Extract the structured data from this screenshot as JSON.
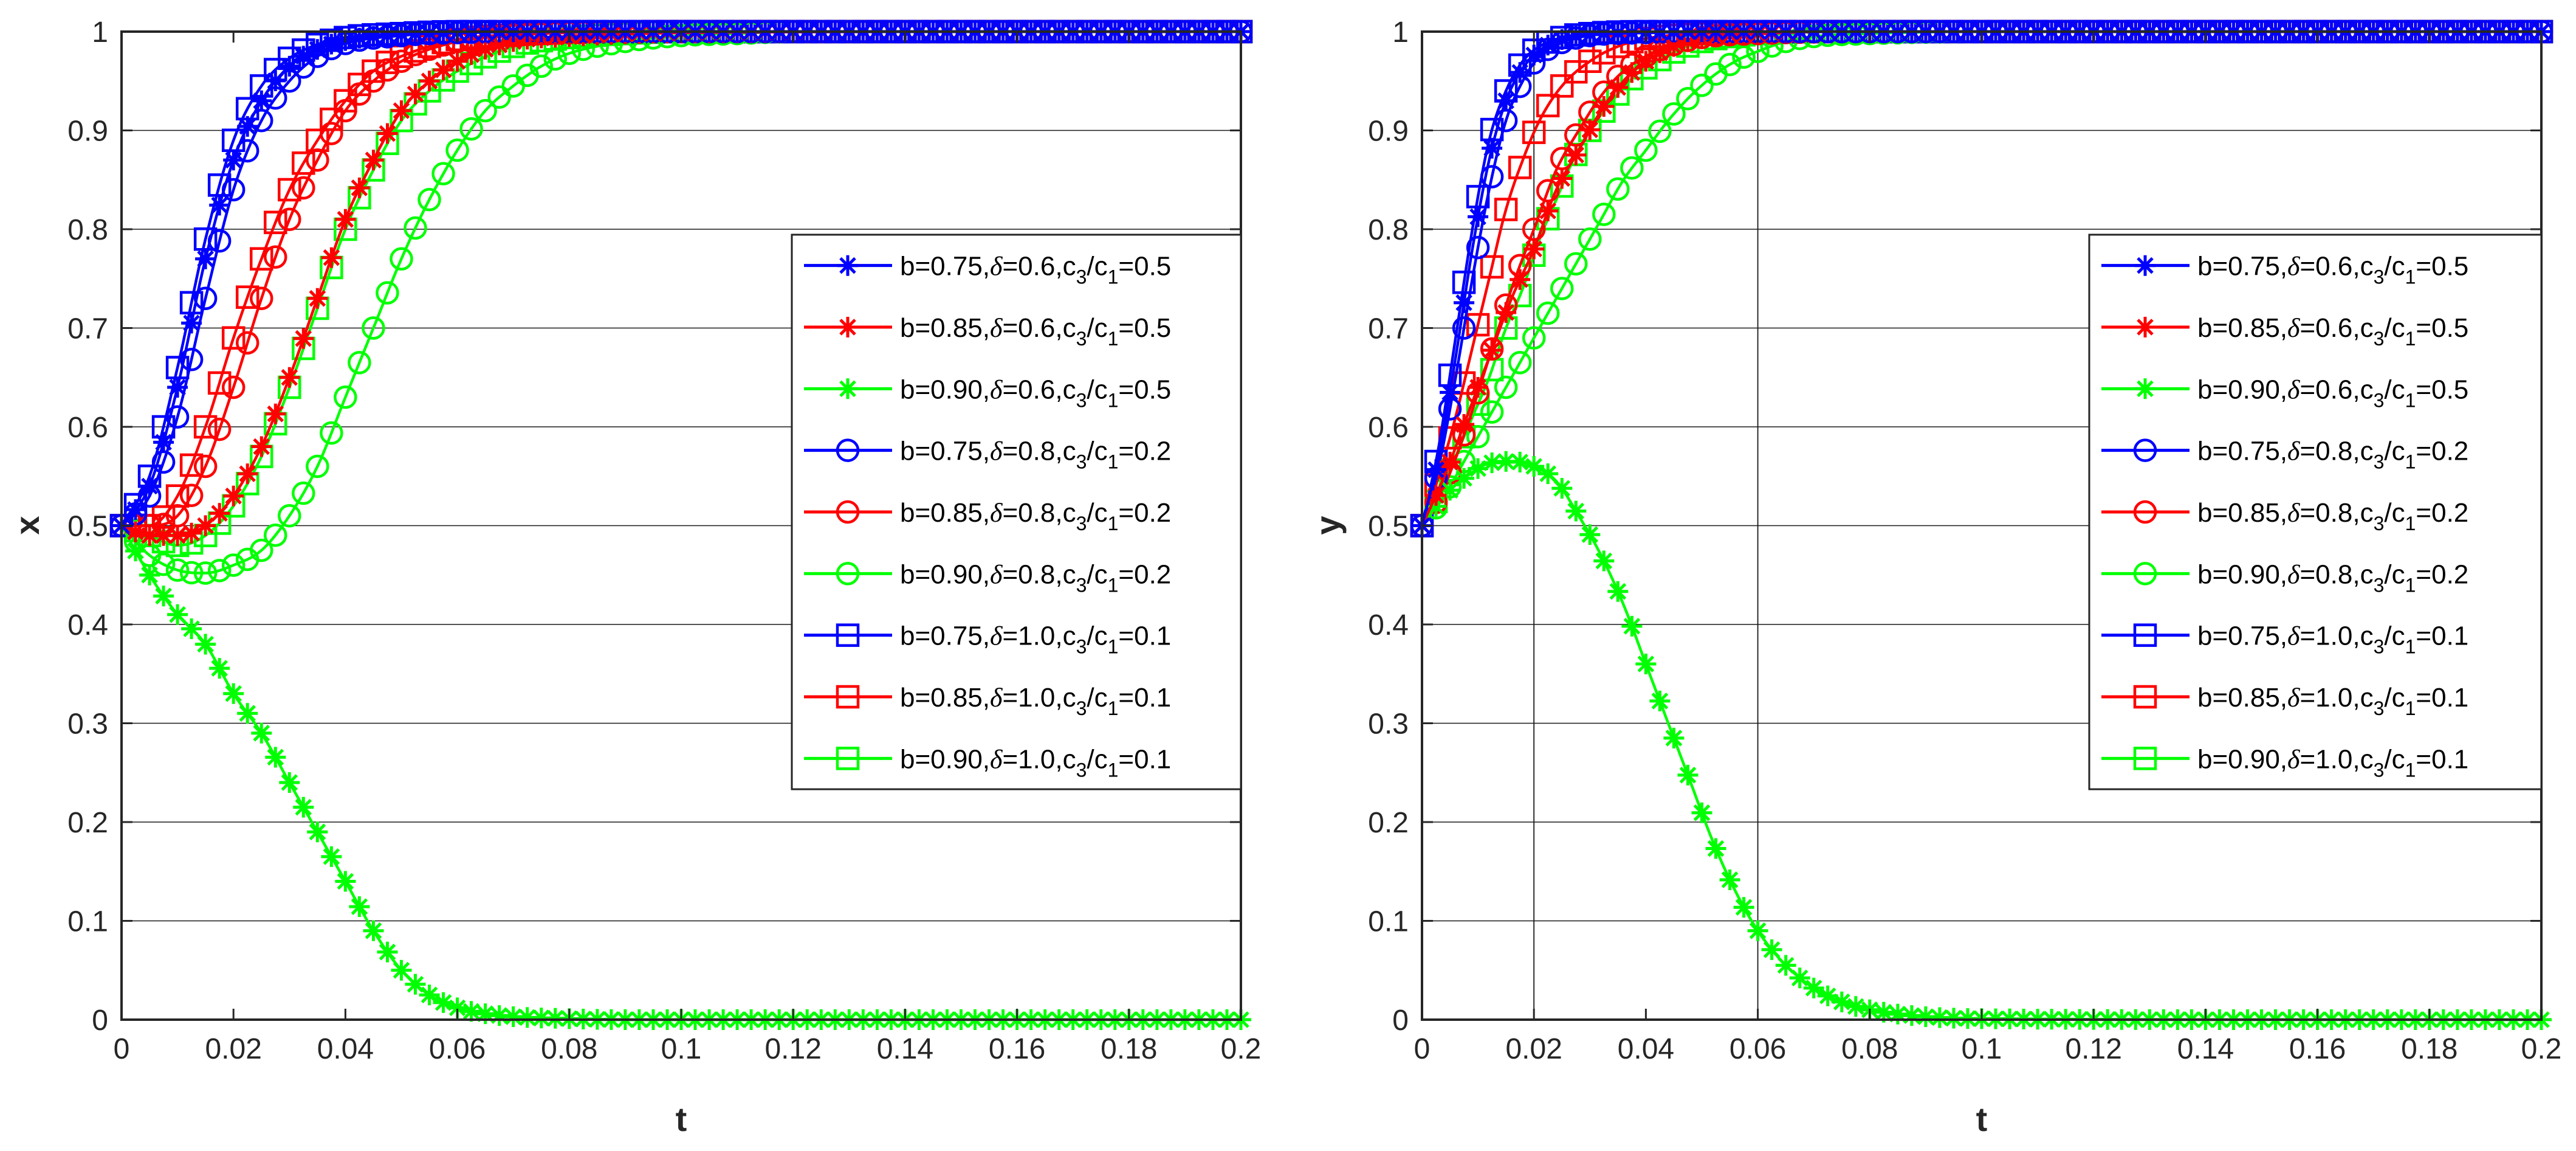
{
  "figure": {
    "panels": [
      {
        "id": "x",
        "xlabel": "t",
        "ylabel": "x"
      },
      {
        "id": "y",
        "xlabel": "t",
        "ylabel": "y"
      }
    ]
  },
  "legend": {
    "placement": "right",
    "entries": [
      {
        "key": "s1",
        "prefix": "b=0.75,",
        "delta": "δ",
        "mid": "=0.6,c",
        "sub1": "3",
        "slash": "/c",
        "sub2": "1",
        "tail": "=0.5",
        "color": "#0000ff",
        "marker": "asterisk"
      },
      {
        "key": "s2",
        "prefix": "b=0.85,",
        "delta": "δ",
        "mid": "=0.6,c",
        "sub1": "3",
        "slash": "/c",
        "sub2": "1",
        "tail": "=0.5",
        "color": "#ff0000",
        "marker": "asterisk"
      },
      {
        "key": "s3",
        "prefix": "b=0.90,",
        "delta": "δ",
        "mid": "=0.6,c",
        "sub1": "3",
        "slash": "/c",
        "sub2": "1",
        "tail": "=0.5",
        "color": "#00ff00",
        "marker": "asterisk"
      },
      {
        "key": "s4",
        "prefix": "b=0.75,",
        "delta": "δ",
        "mid": "=0.8,c",
        "sub1": "3",
        "slash": "/c",
        "sub2": "1",
        "tail": "=0.2",
        "color": "#0000ff",
        "marker": "circle"
      },
      {
        "key": "s5",
        "prefix": "b=0.85,",
        "delta": "δ",
        "mid": "=0.8,c",
        "sub1": "3",
        "slash": "/c",
        "sub2": "1",
        "tail": "=0.2",
        "color": "#ff0000",
        "marker": "circle"
      },
      {
        "key": "s6",
        "prefix": "b=0.90,",
        "delta": "δ",
        "mid": "=0.8,c",
        "sub1": "3",
        "slash": "/c",
        "sub2": "1",
        "tail": "=0.2",
        "color": "#00ff00",
        "marker": "circle"
      },
      {
        "key": "s7",
        "prefix": "b=0.75,",
        "delta": "δ",
        "mid": "=1.0,c",
        "sub1": "3",
        "slash": "/c",
        "sub2": "1",
        "tail": "=0.1",
        "color": "#0000ff",
        "marker": "square"
      },
      {
        "key": "s8",
        "prefix": "b=0.85,",
        "delta": "δ",
        "mid": "=1.0,c",
        "sub1": "3",
        "slash": "/c",
        "sub2": "1",
        "tail": "=0.1",
        "color": "#ff0000",
        "marker": "square"
      },
      {
        "key": "s9",
        "prefix": "b=0.90,",
        "delta": "δ",
        "mid": "=1.0,c",
        "sub1": "3",
        "slash": "/c",
        "sub2": "1",
        "tail": "=0.1",
        "color": "#00ff00",
        "marker": "square"
      }
    ]
  },
  "chart_data": [
    {
      "type": "line",
      "title": "",
      "xlabel": "t",
      "ylabel": "x",
      "xlim": [
        0,
        0.2
      ],
      "ylim": [
        0,
        1
      ],
      "xticks": [
        "0",
        "0.02",
        "0.04",
        "0.06",
        "0.08",
        "0.1",
        "0.12",
        "0.14",
        "0.16",
        "0.18",
        "0.2"
      ],
      "yticks": [
        "0",
        "0.1",
        "0.2",
        "0.3",
        "0.4",
        "0.5",
        "0.6",
        "0.7",
        "0.8",
        "0.9",
        "1"
      ],
      "grid": "horizontal",
      "legend_position": "right",
      "series": [
        {
          "key": "s1",
          "name": "b=0.75,δ=0.6,c3/c1=0.5",
          "x": [
            0,
            0.005,
            0.01,
            0.015,
            0.02,
            0.025,
            0.03,
            0.035,
            0.04,
            0.05,
            0.06,
            0.08,
            0.1,
            0.15,
            0.2
          ],
          "y": [
            0.5,
            0.54,
            0.64,
            0.77,
            0.87,
            0.93,
            0.965,
            0.982,
            0.991,
            0.997,
            0.999,
            1,
            1,
            1,
            1
          ]
        },
        {
          "key": "s2",
          "name": "b=0.85,δ=0.6,c3/c1=0.5",
          "x": [
            0,
            0.005,
            0.01,
            0.015,
            0.02,
            0.025,
            0.03,
            0.035,
            0.04,
            0.045,
            0.05,
            0.055,
            0.06,
            0.07,
            0.08,
            0.1,
            0.15,
            0.2
          ],
          "y": [
            0.5,
            0.49,
            0.49,
            0.5,
            0.53,
            0.58,
            0.65,
            0.73,
            0.81,
            0.87,
            0.92,
            0.95,
            0.97,
            0.99,
            0.995,
            0.999,
            1,
            1
          ]
        },
        {
          "key": "s3",
          "name": "b=0.90,δ=0.6,c3/c1=0.5",
          "x": [
            0,
            0.005,
            0.01,
            0.015,
            0.02,
            0.025,
            0.03,
            0.035,
            0.04,
            0.045,
            0.05,
            0.055,
            0.06,
            0.065,
            0.07,
            0.08,
            0.09,
            0.1,
            0.15,
            0.2
          ],
          "y": [
            0.5,
            0.45,
            0.41,
            0.38,
            0.33,
            0.29,
            0.24,
            0.19,
            0.14,
            0.09,
            0.05,
            0.025,
            0.012,
            0.006,
            0.003,
            0.001,
            0,
            0,
            0,
            0
          ]
        },
        {
          "key": "s4",
          "name": "b=0.75,δ=0.8,c3/c1=0.2",
          "x": [
            0,
            0.005,
            0.01,
            0.015,
            0.02,
            0.025,
            0.03,
            0.035,
            0.04,
            0.05,
            0.06,
            0.08,
            0.1,
            0.15,
            0.2
          ],
          "y": [
            0.5,
            0.53,
            0.61,
            0.73,
            0.84,
            0.91,
            0.95,
            0.975,
            0.988,
            0.996,
            0.999,
            1,
            1,
            1,
            1
          ]
        },
        {
          "key": "s5",
          "name": "b=0.85,δ=0.8,c3/c1=0.2",
          "x": [
            0,
            0.005,
            0.01,
            0.015,
            0.02,
            0.025,
            0.03,
            0.035,
            0.04,
            0.045,
            0.05,
            0.06,
            0.07,
            0.08,
            0.1,
            0.15,
            0.2
          ],
          "y": [
            0.5,
            0.5,
            0.51,
            0.56,
            0.64,
            0.73,
            0.81,
            0.87,
            0.92,
            0.95,
            0.97,
            0.99,
            0.996,
            0.999,
            1,
            1,
            1
          ]
        },
        {
          "key": "s6",
          "name": "b=0.90,δ=0.8,c3/c1=0.2",
          "x": [
            0,
            0.005,
            0.01,
            0.015,
            0.02,
            0.025,
            0.03,
            0.035,
            0.04,
            0.045,
            0.05,
            0.055,
            0.06,
            0.065,
            0.07,
            0.075,
            0.08,
            0.09,
            0.1,
            0.11,
            0.12,
            0.15,
            0.2
          ],
          "y": [
            0.5,
            0.47,
            0.455,
            0.452,
            0.46,
            0.475,
            0.51,
            0.56,
            0.63,
            0.7,
            0.77,
            0.83,
            0.88,
            0.92,
            0.945,
            0.965,
            0.978,
            0.99,
            0.996,
            0.998,
            1,
            1,
            1
          ]
        },
        {
          "key": "s7",
          "name": "b=0.75,δ=1.0,c3/c1=0.1",
          "x": [
            0,
            0.005,
            0.01,
            0.015,
            0.02,
            0.025,
            0.03,
            0.035,
            0.04,
            0.05,
            0.06,
            0.08,
            0.1,
            0.15,
            0.2
          ],
          "y": [
            0.5,
            0.55,
            0.66,
            0.79,
            0.89,
            0.945,
            0.973,
            0.987,
            0.994,
            0.998,
            1,
            1,
            1,
            1,
            1
          ]
        },
        {
          "key": "s8",
          "name": "b=0.85,δ=1.0,c3/c1=0.1",
          "x": [
            0,
            0.005,
            0.01,
            0.015,
            0.02,
            0.025,
            0.03,
            0.035,
            0.04,
            0.045,
            0.05,
            0.06,
            0.07,
            0.08,
            0.1,
            0.15,
            0.2
          ],
          "y": [
            0.5,
            0.5,
            0.53,
            0.6,
            0.69,
            0.77,
            0.84,
            0.89,
            0.93,
            0.96,
            0.975,
            0.992,
            0.997,
            0.999,
            1,
            1,
            1
          ]
        },
        {
          "key": "s9",
          "name": "b=0.90,δ=1.0,c3/c1=0.1",
          "x": [
            0,
            0.005,
            0.01,
            0.015,
            0.02,
            0.025,
            0.03,
            0.035,
            0.04,
            0.045,
            0.05,
            0.055,
            0.06,
            0.07,
            0.08,
            0.09,
            0.1,
            0.15,
            0.2
          ],
          "y": [
            0.5,
            0.49,
            0.48,
            0.49,
            0.52,
            0.57,
            0.64,
            0.72,
            0.8,
            0.86,
            0.91,
            0.94,
            0.96,
            0.985,
            0.994,
            0.998,
            1,
            1,
            1
          ]
        }
      ]
    },
    {
      "type": "line",
      "title": "",
      "xlabel": "t",
      "ylabel": "y",
      "xlim": [
        0,
        0.2
      ],
      "ylim": [
        0,
        1
      ],
      "xticks": [
        "0",
        "0.02",
        "0.04",
        "0.06",
        "0.08",
        "0.1",
        "0.12",
        "0.14",
        "0.16",
        "0.18",
        "0.2"
      ],
      "yticks": [
        "0",
        "0.1",
        "0.2",
        "0.3",
        "0.4",
        "0.5",
        "0.6",
        "0.7",
        "0.8",
        "0.9",
        "1"
      ],
      "grid": "horizontal",
      "vlines": [
        0.02,
        0.06
      ],
      "legend_position": "right",
      "series": [
        {
          "key": "s1",
          "name": "b=0.75,δ=0.6,c3/c1=0.5",
          "x": [
            0,
            0.003,
            0.006,
            0.009,
            0.012,
            0.015,
            0.018,
            0.021,
            0.025,
            0.03,
            0.04,
            0.05,
            0.07,
            0.1,
            0.15,
            0.2
          ],
          "y": [
            0.5,
            0.57,
            0.67,
            0.78,
            0.87,
            0.93,
            0.963,
            0.981,
            0.992,
            0.997,
            0.999,
            1,
            1,
            1,
            1,
            1
          ]
        },
        {
          "key": "s2",
          "name": "b=0.85,δ=0.6,c3/c1=0.5",
          "x": [
            0,
            0.004,
            0.008,
            0.012,
            0.016,
            0.02,
            0.024,
            0.028,
            0.032,
            0.036,
            0.04,
            0.045,
            0.05,
            0.06,
            0.07,
            0.1,
            0.15,
            0.2
          ],
          "y": [
            0.5,
            0.55,
            0.61,
            0.67,
            0.73,
            0.78,
            0.84,
            0.88,
            0.92,
            0.95,
            0.97,
            0.985,
            0.993,
            0.998,
            1,
            1,
            1,
            1
          ]
        },
        {
          "key": "s3",
          "name": "b=0.90,δ=0.6,c3/c1=0.5",
          "x": [
            0,
            0.004,
            0.008,
            0.012,
            0.016,
            0.02,
            0.024,
            0.028,
            0.032,
            0.036,
            0.04,
            0.044,
            0.048,
            0.052,
            0.056,
            0.06,
            0.065,
            0.07,
            0.075,
            0.08,
            0.09,
            0.1,
            0.15,
            0.2
          ],
          "y": [
            0.5,
            0.53,
            0.55,
            0.563,
            0.565,
            0.56,
            0.545,
            0.51,
            0.47,
            0.42,
            0.36,
            0.3,
            0.24,
            0.18,
            0.13,
            0.09,
            0.055,
            0.032,
            0.018,
            0.01,
            0.003,
            0.001,
            0,
            0
          ]
        },
        {
          "key": "s4",
          "name": "b=0.75,δ=0.8,c3/c1=0.2",
          "x": [
            0,
            0.003,
            0.006,
            0.009,
            0.012,
            0.015,
            0.018,
            0.021,
            0.025,
            0.03,
            0.04,
            0.05,
            0.07,
            0.1,
            0.15,
            0.2
          ],
          "y": [
            0.5,
            0.56,
            0.65,
            0.75,
            0.84,
            0.91,
            0.95,
            0.975,
            0.989,
            0.996,
            0.999,
            1,
            1,
            1,
            1,
            1
          ]
        },
        {
          "key": "s5",
          "name": "b=0.85,δ=0.8,c3/c1=0.2",
          "x": [
            0,
            0.004,
            0.008,
            0.012,
            0.016,
            0.02,
            0.024,
            0.028,
            0.032,
            0.036,
            0.04,
            0.045,
            0.05,
            0.06,
            0.08,
            0.1,
            0.15,
            0.2
          ],
          "y": [
            0.5,
            0.54,
            0.6,
            0.67,
            0.74,
            0.8,
            0.86,
            0.9,
            0.935,
            0.96,
            0.975,
            0.987,
            0.994,
            0.998,
            1,
            1,
            1,
            1
          ]
        },
        {
          "key": "s6",
          "name": "b=0.90,δ=0.8,c3/c1=0.2",
          "x": [
            0,
            0.004,
            0.008,
            0.012,
            0.016,
            0.02,
            0.024,
            0.028,
            0.032,
            0.036,
            0.04,
            0.044,
            0.048,
            0.052,
            0.056,
            0.06,
            0.065,
            0.07,
            0.08,
            0.1,
            0.15,
            0.2
          ],
          "y": [
            0.5,
            0.53,
            0.57,
            0.61,
            0.65,
            0.69,
            0.73,
            0.77,
            0.81,
            0.85,
            0.88,
            0.91,
            0.935,
            0.955,
            0.97,
            0.98,
            0.99,
            0.995,
            0.998,
            1,
            1,
            1
          ]
        },
        {
          "key": "s7",
          "name": "b=0.75,δ=1.0,c3/c1=0.1",
          "x": [
            0,
            0.003,
            0.006,
            0.009,
            0.012,
            0.015,
            0.018,
            0.021,
            0.025,
            0.03,
            0.04,
            0.05,
            0.07,
            0.1,
            0.15,
            0.2
          ],
          "y": [
            0.5,
            0.58,
            0.69,
            0.8,
            0.89,
            0.94,
            0.97,
            0.985,
            0.994,
            0.998,
            1,
            1,
            1,
            1,
            1,
            1
          ]
        },
        {
          "key": "s8",
          "name": "b=0.85,δ=1.0,c3/c1=0.1",
          "x": [
            0,
            0.003,
            0.006,
            0.009,
            0.012,
            0.015,
            0.018,
            0.021,
            0.025,
            0.03,
            0.035,
            0.04,
            0.05,
            0.07,
            0.1,
            0.15,
            0.2
          ],
          "y": [
            0.5,
            0.55,
            0.61,
            0.68,
            0.75,
            0.82,
            0.87,
            0.91,
            0.945,
            0.97,
            0.985,
            0.993,
            0.998,
            1,
            1,
            1,
            1
          ]
        },
        {
          "key": "s9",
          "name": "b=0.90,δ=1.0,c3/c1=0.1",
          "x": [
            0,
            0.003,
            0.006,
            0.009,
            0.012,
            0.015,
            0.018,
            0.021,
            0.024,
            0.027,
            0.03,
            0.034,
            0.038,
            0.042,
            0.046,
            0.05,
            0.055,
            0.06,
            0.07,
            0.1,
            0.15,
            0.2
          ],
          "y": [
            0.5,
            0.53,
            0.57,
            0.61,
            0.65,
            0.7,
            0.74,
            0.79,
            0.83,
            0.87,
            0.9,
            0.93,
            0.955,
            0.97,
            0.982,
            0.99,
            0.995,
            0.998,
            1,
            1,
            1,
            1
          ]
        }
      ]
    }
  ]
}
